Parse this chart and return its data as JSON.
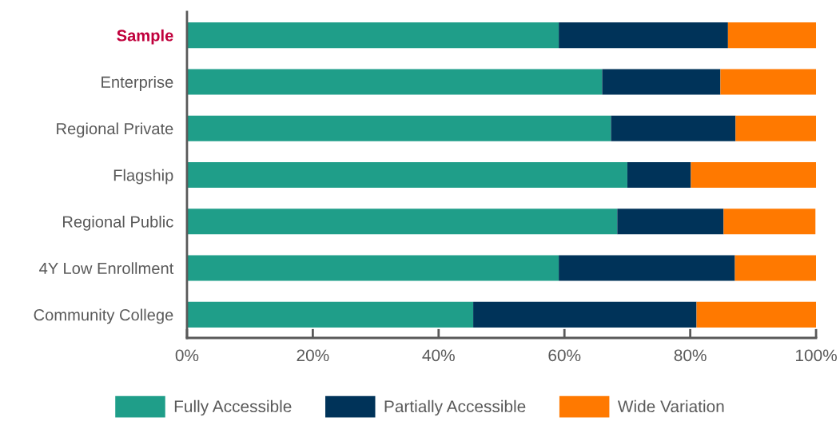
{
  "chart_data": {
    "type": "bar",
    "orientation": "horizontal",
    "stacked": true,
    "categories": [
      "Sample",
      "Enterprise",
      "Regional Private",
      "Flagship",
      "Regional Public",
      "4Y Low Enrollment",
      "Community College"
    ],
    "series": [
      {
        "name": "Fully Accessible",
        "color": "#1f9e89",
        "values": [
          59.1,
          66.0,
          67.4,
          70.0,
          68.4,
          59.1,
          45.5
        ]
      },
      {
        "name": "Partially Accessible",
        "color": "#003359",
        "values": [
          26.9,
          18.8,
          19.8,
          10.1,
          16.9,
          28.0,
          35.5
        ]
      },
      {
        "name": "Wide Variation",
        "color": "#ff7900",
        "values": [
          14.0,
          15.2,
          12.8,
          19.9,
          14.6,
          12.9,
          19.0
        ]
      }
    ],
    "xlim": [
      0,
      100
    ],
    "xticks": [
      {
        "value": 0,
        "label": "0%"
      },
      {
        "value": 20,
        "label": "20%"
      },
      {
        "value": 40,
        "label": "40%"
      },
      {
        "value": 60,
        "label": "60%"
      },
      {
        "value": 80,
        "label": "80%"
      },
      {
        "value": 100,
        "label": "100%"
      }
    ],
    "legend": "bottom",
    "grid": false
  }
}
